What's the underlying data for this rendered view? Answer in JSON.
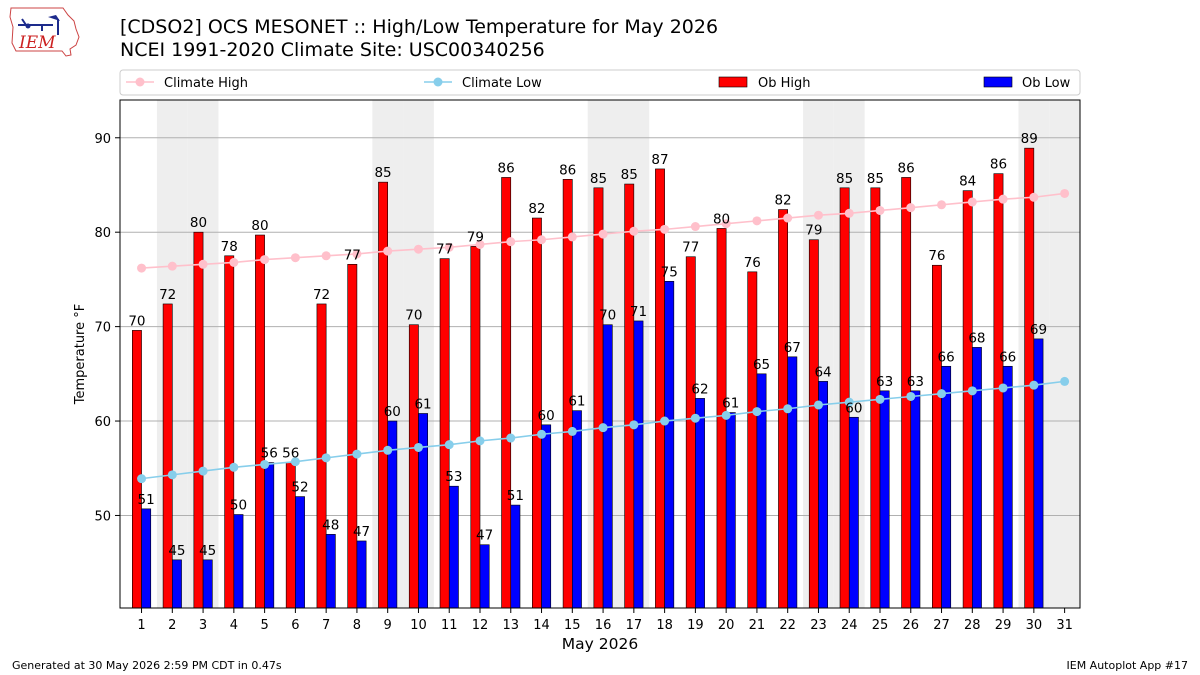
{
  "header": {
    "logo_text": "IEM",
    "title_line1": "[CDSO2] OCS MESONET :: High/Low Temperature for May 2026",
    "title_line2": "NCEI 1991-2020 Climate Site: USC00340256"
  },
  "footer": {
    "generated": "Generated at 30 May 2026 2:59 PM CDT in 0.47s",
    "app": "IEM Autoplot App #17"
  },
  "colors": {
    "ob_high": "#ff0000",
    "ob_low": "#0000ff",
    "climate_high": "#ffc0cb",
    "climate_low": "#87ceeb",
    "weekend_shade": "#eeeeee",
    "grid": "#b0b0b0"
  },
  "chart_data": {
    "type": "bar",
    "xlabel": "May 2026",
    "ylabel": "Temperature °F",
    "ylim": [
      40.2,
      94
    ],
    "yticks": [
      50,
      60,
      70,
      80,
      90
    ],
    "grid": "horizontal",
    "legend": "top, above plot",
    "categories": [
      "1",
      "2",
      "3",
      "4",
      "5",
      "6",
      "7",
      "8",
      "9",
      "10",
      "11",
      "12",
      "13",
      "14",
      "15",
      "16",
      "17",
      "18",
      "19",
      "20",
      "21",
      "22",
      "23",
      "24",
      "25",
      "26",
      "27",
      "28",
      "29",
      "30",
      "31"
    ],
    "shaded_days": [
      2,
      3,
      9,
      10,
      16,
      17,
      23,
      24,
      30,
      31
    ],
    "series": [
      {
        "name": "Climate High",
        "kind": "line",
        "values": [
          76.2,
          76.4,
          76.6,
          76.8,
          77.1,
          77.3,
          77.5,
          77.7,
          78.0,
          78.2,
          78.4,
          78.7,
          79.0,
          79.2,
          79.5,
          79.8,
          80.1,
          80.3,
          80.6,
          80.9,
          81.2,
          81.5,
          81.8,
          82.0,
          82.3,
          82.6,
          82.9,
          83.2,
          83.5,
          83.7,
          84.1
        ]
      },
      {
        "name": "Climate Low",
        "kind": "line",
        "values": [
          53.9,
          54.3,
          54.7,
          55.1,
          55.4,
          55.7,
          56.1,
          56.5,
          56.9,
          57.2,
          57.5,
          57.9,
          58.2,
          58.6,
          58.9,
          59.3,
          59.6,
          60.0,
          60.3,
          60.6,
          61.0,
          61.3,
          61.7,
          62.0,
          62.3,
          62.6,
          62.9,
          63.2,
          63.5,
          63.8,
          64.2
        ]
      },
      {
        "name": "Ob High",
        "kind": "bar",
        "values": [
          69.6,
          72.4,
          80.0,
          77.5,
          79.7,
          55.6,
          72.4,
          76.6,
          85.3,
          70.2,
          77.2,
          78.5,
          85.8,
          81.5,
          85.6,
          84.7,
          85.1,
          86.7,
          77.4,
          80.4,
          75.8,
          82.4,
          79.2,
          84.7,
          84.7,
          85.8,
          76.5,
          84.4,
          86.2,
          88.9,
          null
        ],
        "labels": [
          "70",
          "72",
          "80",
          "78",
          "80",
          "56",
          "72",
          "77",
          "85",
          "70",
          "77",
          "79",
          "86",
          "82",
          "86",
          "85",
          "85",
          "87",
          "77",
          "80",
          "76",
          "82",
          "79",
          "85",
          "85",
          "86",
          "76",
          "84",
          "86",
          "89",
          ""
        ]
      },
      {
        "name": "Ob Low",
        "kind": "bar",
        "values": [
          50.7,
          45.3,
          45.3,
          50.1,
          55.6,
          52.0,
          48.0,
          47.3,
          60.0,
          60.8,
          53.1,
          46.9,
          51.1,
          59.6,
          61.1,
          70.2,
          70.6,
          74.8,
          62.4,
          60.9,
          65.0,
          66.8,
          64.2,
          60.4,
          63.2,
          63.2,
          65.8,
          67.8,
          65.8,
          68.7,
          null
        ],
        "labels": [
          "51",
          "45",
          "45",
          "50",
          "56",
          "52",
          "48",
          "47",
          "60",
          "61",
          "53",
          "47",
          "51",
          "60",
          "61",
          "70",
          "71",
          "75",
          "62",
          "61",
          "65",
          "67",
          "64",
          "60",
          "63",
          "63",
          "66",
          "68",
          "66",
          "69",
          ""
        ]
      }
    ]
  }
}
